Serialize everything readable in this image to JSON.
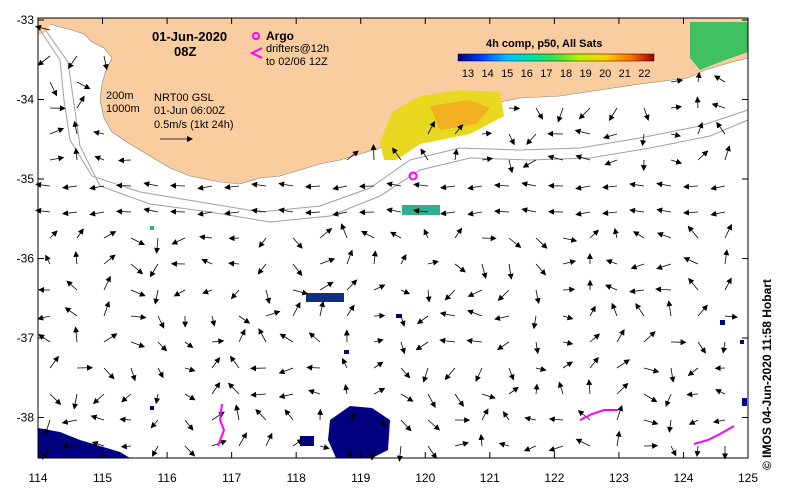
{
  "map": {
    "date": "01-Jun-2020",
    "hour": "08Z",
    "legend_argo": "Argo",
    "legend_drifters_1": "drifters@12h",
    "legend_drifters_2": "to 02/06 12Z",
    "legend_sst_title": "4h comp, p50, All Sats",
    "colorbar_labels": [
      "13",
      "14",
      "15",
      "16",
      "17",
      "18",
      "19",
      "20",
      "21",
      "22"
    ],
    "isobath_200": "200m",
    "isobath_1000": "1000m",
    "product": "NRT00 GSL",
    "product_time": "01-Jun 06:00Z",
    "vector_scale": "0.5m/s (1kt 24h)",
    "credit": "© IMOS 04-Jun-2020 11:58 Hobart",
    "lon_labels": [
      "114",
      "115",
      "116",
      "117",
      "118",
      "119",
      "120",
      "121",
      "122",
      "123",
      "124",
      "125"
    ],
    "lat_labels": [
      "-33",
      "-34",
      "-35",
      "-36",
      "-37",
      "-38"
    ],
    "colors": {
      "land": "#FACDA0",
      "argo": "#FF00FF",
      "drifters": "#FF00FF",
      "isobath": "#A0A0A0",
      "sst_cold": "#000080",
      "sst_warm": "#FFD000"
    }
  }
}
